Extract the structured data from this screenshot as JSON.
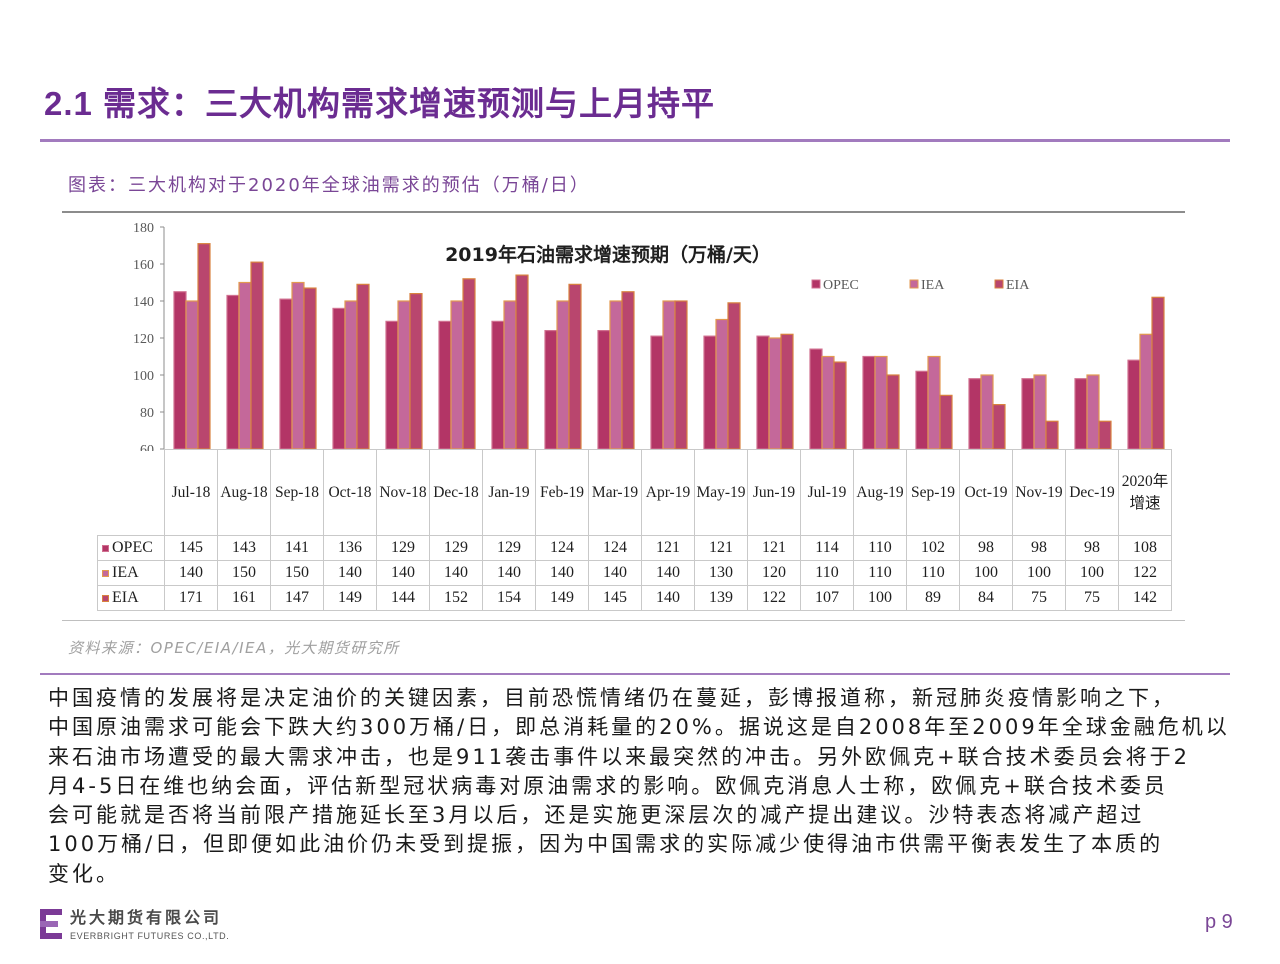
{
  "page": {
    "title": "2.1 需求：三大机构需求增速预测与上月持平",
    "figure_caption": "图表：三大机构对于2020年全球油需求的预估（万桶/日）",
    "source": "资料来源：OPEC/EIA/IEA，光大期货研究所",
    "body_lines": [
      "中国疫情的发展将是决定油价的关键因素，目前恐慌情绪仍在蔓延，彭博报道称，新冠肺炎疫情影响之下，",
      "中国原油需求可能会下跌大约300万桶/日，即总消耗量的20%。据说这是自2008年至2009年全球金融危机以",
      "来石油市场遭受的最大需求冲击，也是911袭击事件以来最突然的冲击。另外欧佩克+联合技术委员会将于2",
      "月4-5日在维也纳会面，评估新型冠状病毒对原油需求的影响。欧佩克消息人士称，欧佩克+联合技术委员",
      "会可能就是否将当前限产措施延长至3月以后，还是实施更深层次的减产提出建议。沙特表态将减产超过",
      "100万桶/日，但即便如此油价仍未受到提振，因为中国需求的实际减少使得油市供需平衡表发生了本质的",
      "变化。"
    ],
    "page_number": "p 9"
  },
  "footer": {
    "company_cn": "光大期货有限公司",
    "company_en": "EVERBRIGHT FUTURES CO.,LTD.",
    "logo_icon": "everbright-logo-icon"
  },
  "colors": {
    "accent": "#6B2C91",
    "rule": "#A27BBE",
    "caption": "#7A4696",
    "source_text": "#A0A0A0"
  },
  "chart_data": {
    "type": "bar",
    "title": "2019年石油需求增速预期（万桶/天）",
    "categories": [
      "Jul-18",
      "Aug-18",
      "Sep-18",
      "Oct-18",
      "Nov-18",
      "Dec-18",
      "Jan-19",
      "Feb-19",
      "Mar-19",
      "Apr-19",
      "May-19",
      "Jun-19",
      "Jul-19",
      "Aug-19",
      "Sep-19",
      "Oct-19",
      "Nov-19",
      "Dec-19",
      "2020年增速"
    ],
    "series": [
      {
        "name": "OPEC",
        "color": "#B33566",
        "edge": "#D07090",
        "values": [
          145,
          143,
          141,
          136,
          129,
          129,
          129,
          124,
          124,
          121,
          121,
          121,
          114,
          110,
          102,
          98,
          98,
          98,
          108
        ]
      },
      {
        "name": "IEA",
        "color": "#C4689A",
        "edge": "#E39A4F",
        "values": [
          140,
          150,
          150,
          140,
          140,
          140,
          140,
          140,
          140,
          140,
          130,
          120,
          110,
          110,
          110,
          100,
          100,
          100,
          122
        ]
      },
      {
        "name": "EIA",
        "color": "#B9466E",
        "edge": "#D9823F",
        "values": [
          171,
          161,
          147,
          149,
          144,
          152,
          154,
          149,
          145,
          140,
          139,
          122,
          107,
          100,
          89,
          84,
          75,
          75,
          142
        ]
      }
    ],
    "ylim": [
      60,
      180
    ],
    "yticks": [
      60,
      80,
      100,
      120,
      140,
      160,
      180
    ],
    "legend": "top-right",
    "grid": false,
    "data_table": true
  }
}
